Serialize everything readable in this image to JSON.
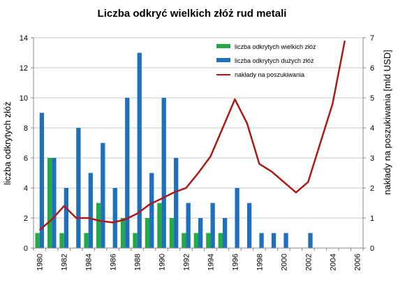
{
  "chart_data": {
    "type": "bar",
    "title": "Liczba odkryć wielkich złóż rud metali",
    "ylabel": "liczba odkrytych złóż",
    "y2label": "nakłady na poszukiwania [mld USD]",
    "x": [
      1980,
      1981,
      1982,
      1983,
      1984,
      1985,
      1986,
      1987,
      1988,
      1989,
      1990,
      1991,
      1992,
      1993,
      1994,
      1995,
      1996,
      1997,
      1998,
      1999,
      2000,
      2001,
      2002,
      2003,
      2004,
      2005,
      2006
    ],
    "x_tick_labels": [
      "1980",
      "1982",
      "1984",
      "1986",
      "1988",
      "1990",
      "1992",
      "1994",
      "1996",
      "1998",
      "2000",
      "2002",
      "2004",
      "2006"
    ],
    "ylim": [
      0,
      14
    ],
    "yticks": [
      "0",
      "2",
      "4",
      "6",
      "8",
      "10",
      "12",
      "14"
    ],
    "y2lim": [
      0,
      7
    ],
    "y2ticks": [
      "0",
      "1",
      "2",
      "3",
      "4",
      "5",
      "6",
      "7"
    ],
    "legend_position": "top-right",
    "series": [
      {
        "name": "liczba odkrytych wielkich złóż",
        "kind": "bar",
        "color": "#22aa44",
        "values": [
          1,
          6,
          1,
          0,
          1,
          3,
          0,
          2,
          1,
          2,
          3,
          2,
          1,
          1,
          1,
          1,
          0,
          0,
          0,
          0,
          0,
          0,
          0,
          0,
          0,
          0,
          0
        ]
      },
      {
        "name": "liczba odkrytych dużych złóż",
        "kind": "bar",
        "color": "#1f6fbf",
        "values": [
          9,
          6,
          4,
          8,
          5,
          7,
          4,
          10,
          13,
          5,
          10,
          6,
          3,
          2,
          3,
          2,
          4,
          3,
          1,
          1,
          1,
          0,
          1,
          0,
          0,
          0,
          0
        ]
      },
      {
        "name": "nakłady na poszukiwania",
        "kind": "line",
        "axis": "right",
        "color": "#b01818",
        "values": [
          0.6,
          0.95,
          1.4,
          1.0,
          1.0,
          0.9,
          0.85,
          0.95,
          1.15,
          1.45,
          1.65,
          1.85,
          2.0,
          2.5,
          3.05,
          4.0,
          4.95,
          4.15,
          2.8,
          2.55,
          2.2,
          1.85,
          2.2,
          3.5,
          4.8,
          6.9,
          null
        ]
      }
    ]
  }
}
